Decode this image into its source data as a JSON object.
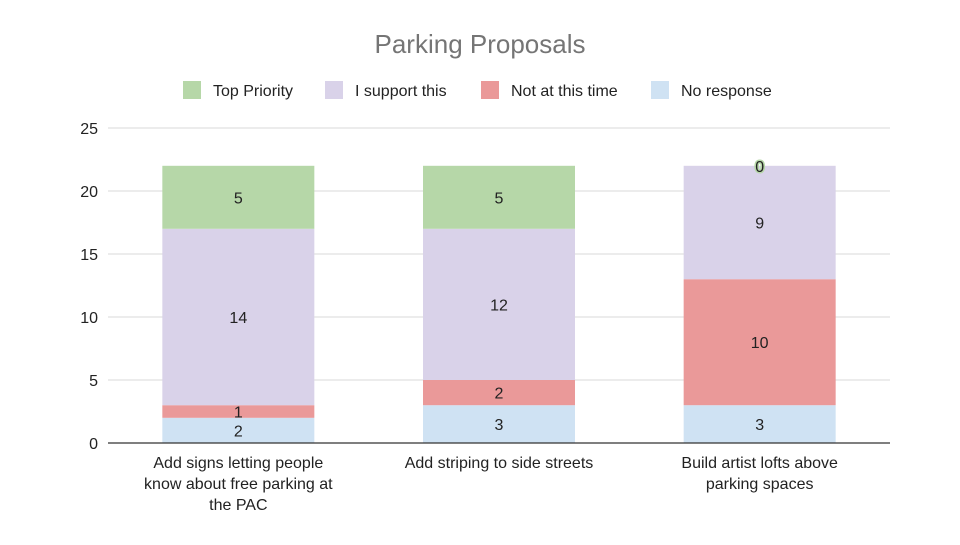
{
  "chart_data": {
    "type": "bar",
    "stacked": true,
    "title": "Parking Proposals",
    "categories": [
      [
        "Add signs letting people",
        "know about free parking at",
        "the PAC"
      ],
      [
        "Add striping to side streets"
      ],
      [
        "Build artist lofts above",
        "parking spaces"
      ]
    ],
    "series": [
      {
        "name": "No response",
        "color": "#cfe2f3",
        "values": [
          2,
          3,
          3
        ]
      },
      {
        "name": "Not at this time",
        "color": "#ea9999",
        "values": [
          1,
          2,
          10
        ]
      },
      {
        "name": "I support this",
        "color": "#d9d2e9",
        "values": [
          14,
          12,
          9
        ]
      },
      {
        "name": "Top Priority",
        "color": "#b6d7a8",
        "values": [
          5,
          5,
          0
        ]
      }
    ],
    "legend_order": [
      "Top Priority",
      "I support this",
      "Not at this time",
      "No response"
    ],
    "legend_position": "top",
    "ylim": [
      0,
      25
    ],
    "yticks": [
      "0",
      "5",
      "10",
      "15",
      "20",
      "25"
    ],
    "grid": true
  }
}
